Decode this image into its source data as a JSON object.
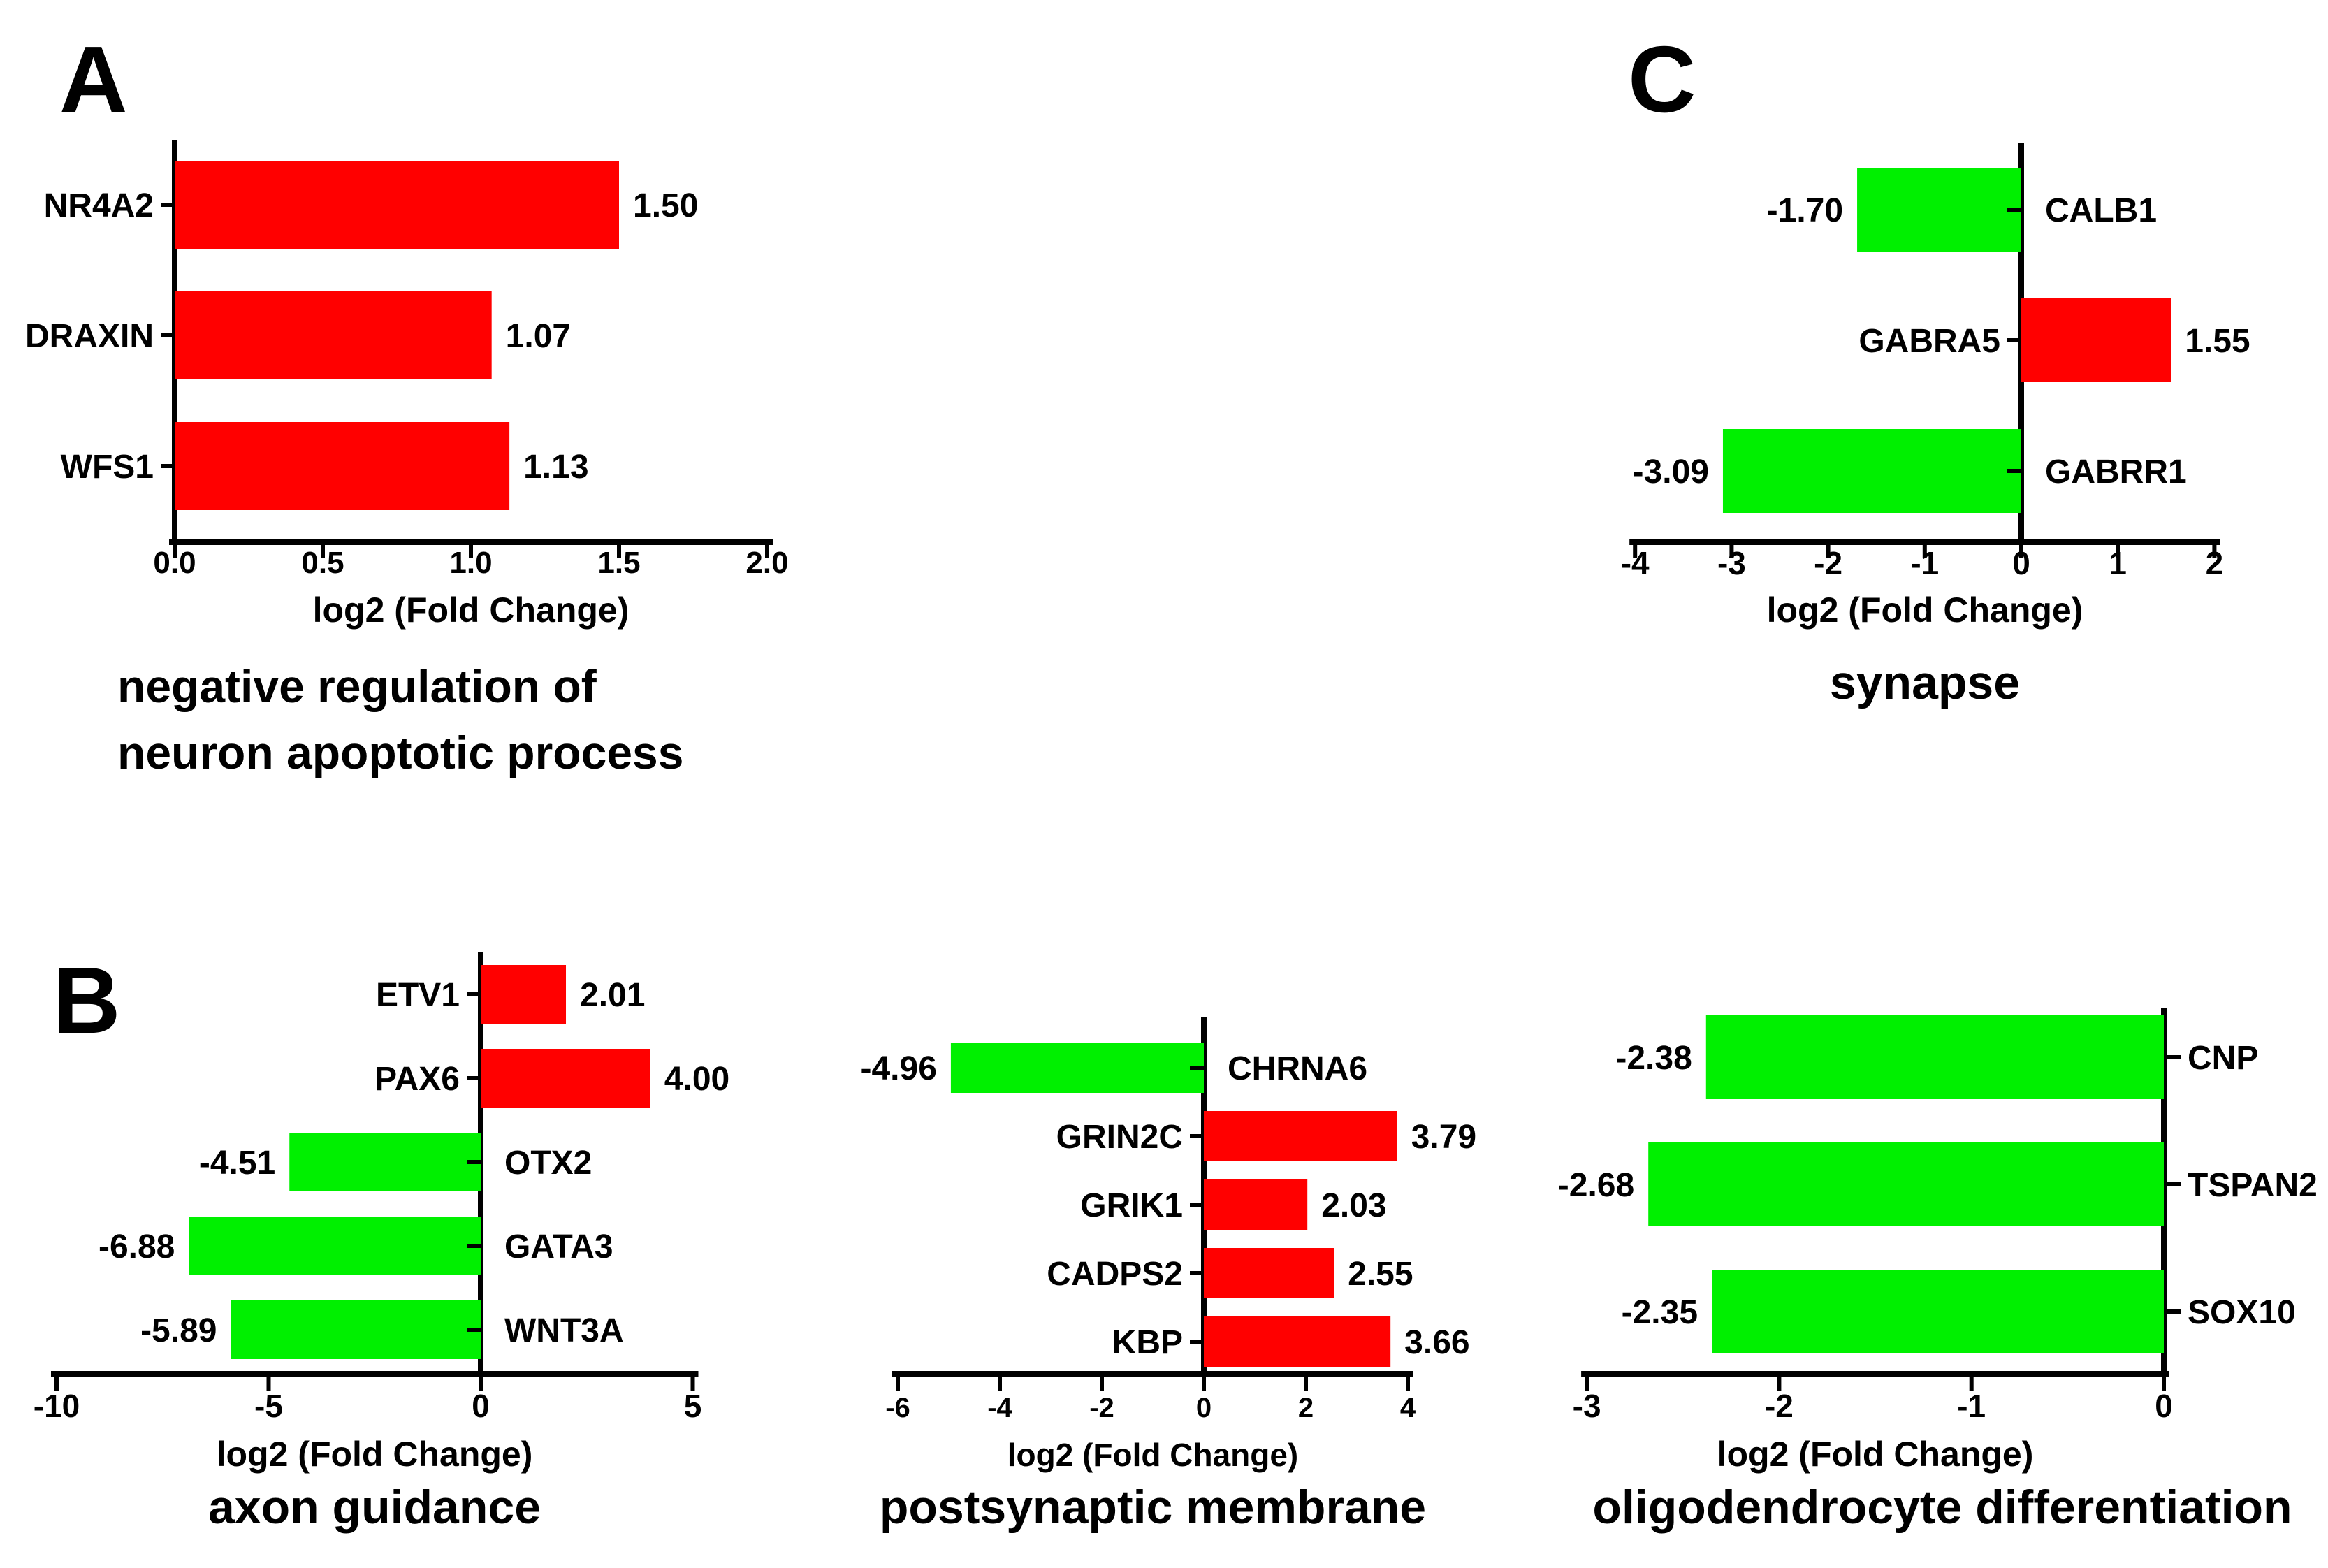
{
  "figure": {
    "background": "#ffffff",
    "axis_color": "#000000",
    "bar_colors": {
      "up": "#ff0000",
      "down": "#00f000"
    },
    "xlabel_shared": "log2 (Fold Change)"
  },
  "chart_data": [
    {
      "panel": "A",
      "type": "bar",
      "orientation": "horizontal",
      "title_lines": [
        "negative regulation of",
        "neuron apoptotic process"
      ],
      "xlabel": "log2 (Fold Change)",
      "xlim": [
        0.0,
        2.0
      ],
      "xtick_values": [
        0.0,
        0.5,
        1.0,
        1.5,
        2.0
      ],
      "xticks": [
        "0.0",
        "0.5",
        "1.0",
        "1.5",
        "2.0"
      ],
      "categories": [
        "NR4A2",
        "DRAXIN",
        "WFS1"
      ],
      "values": [
        1.5,
        1.07,
        1.13
      ],
      "values_display": [
        "1.50",
        "1.07",
        "1.13"
      ],
      "directions": [
        "up",
        "up",
        "up"
      ],
      "grid": false,
      "legend": "none"
    },
    {
      "panel": "C",
      "type": "bar",
      "orientation": "horizontal",
      "title_lines": [
        "synapse"
      ],
      "xlabel": "log2 (Fold Change)",
      "xlim": [
        -4,
        2
      ],
      "xtick_values": [
        -4,
        -3,
        -2,
        -1,
        0,
        1,
        2
      ],
      "xticks": [
        "-4",
        "-3",
        "-2",
        "-1",
        "0",
        "1",
        "2"
      ],
      "categories": [
        "CALB1",
        "GABRA5",
        "GABRR1"
      ],
      "values": [
        -1.7,
        1.55,
        -3.09
      ],
      "values_display": [
        "-1.70",
        "1.55",
        "-3.09"
      ],
      "directions": [
        "down",
        "up",
        "down"
      ],
      "grid": false,
      "legend": "none"
    },
    {
      "panel": "B",
      "type": "bar",
      "orientation": "horizontal",
      "title_lines": [
        "axon guidance"
      ],
      "xlabel": "log2 (Fold Change)",
      "xlim": [
        -10,
        5
      ],
      "xtick_values": [
        -10,
        -5,
        0,
        5
      ],
      "xticks": [
        "-10",
        "-5",
        "0",
        "5"
      ],
      "categories": [
        "ETV1",
        "PAX6",
        "OTX2",
        "GATA3",
        "WNT3A"
      ],
      "values": [
        2.01,
        4.0,
        -4.51,
        -6.88,
        -5.89
      ],
      "values_display": [
        "2.01",
        "4.00",
        "-4.51",
        "-6.88",
        "-5.89"
      ],
      "directions": [
        "up",
        "up",
        "down",
        "down",
        "down"
      ],
      "grid": false,
      "legend": "none"
    },
    {
      "panel": "",
      "type": "bar",
      "orientation": "horizontal",
      "title_lines": [
        "postsynaptic membrane"
      ],
      "xlabel": "log2 (Fold Change)",
      "xlim": [
        -6,
        4
      ],
      "xtick_values": [
        -6,
        -4,
        -2,
        0,
        2,
        4
      ],
      "xticks": [
        "-6",
        "-4",
        "-2",
        "0",
        "2",
        "4"
      ],
      "categories": [
        "CHRNA6",
        "GRIN2C",
        "GRIK1",
        "CADPS2",
        "KBP"
      ],
      "values": [
        -4.96,
        3.79,
        2.03,
        2.55,
        3.66
      ],
      "values_display": [
        "-4.96",
        "3.79",
        "2.03",
        "2.55",
        "3.66"
      ],
      "directions": [
        "down",
        "up",
        "up",
        "up",
        "up"
      ],
      "grid": false,
      "legend": "none"
    },
    {
      "panel": "",
      "type": "bar",
      "orientation": "horizontal",
      "title_lines": [
        "oligodendrocyte differentiation"
      ],
      "xlabel": "log2 (Fold Change)",
      "xlim": [
        -3,
        0
      ],
      "xtick_values": [
        -3,
        -2,
        -1,
        0
      ],
      "xticks": [
        "-3",
        "-2",
        "-1",
        "0"
      ],
      "categories": [
        "CNP",
        "TSPAN2",
        "SOX10"
      ],
      "values": [
        -2.38,
        -2.68,
        -2.35
      ],
      "values_display": [
        "-2.38",
        "-2.68",
        "-2.35"
      ],
      "directions": [
        "down",
        "down",
        "down"
      ],
      "grid": false,
      "legend": "none"
    }
  ]
}
